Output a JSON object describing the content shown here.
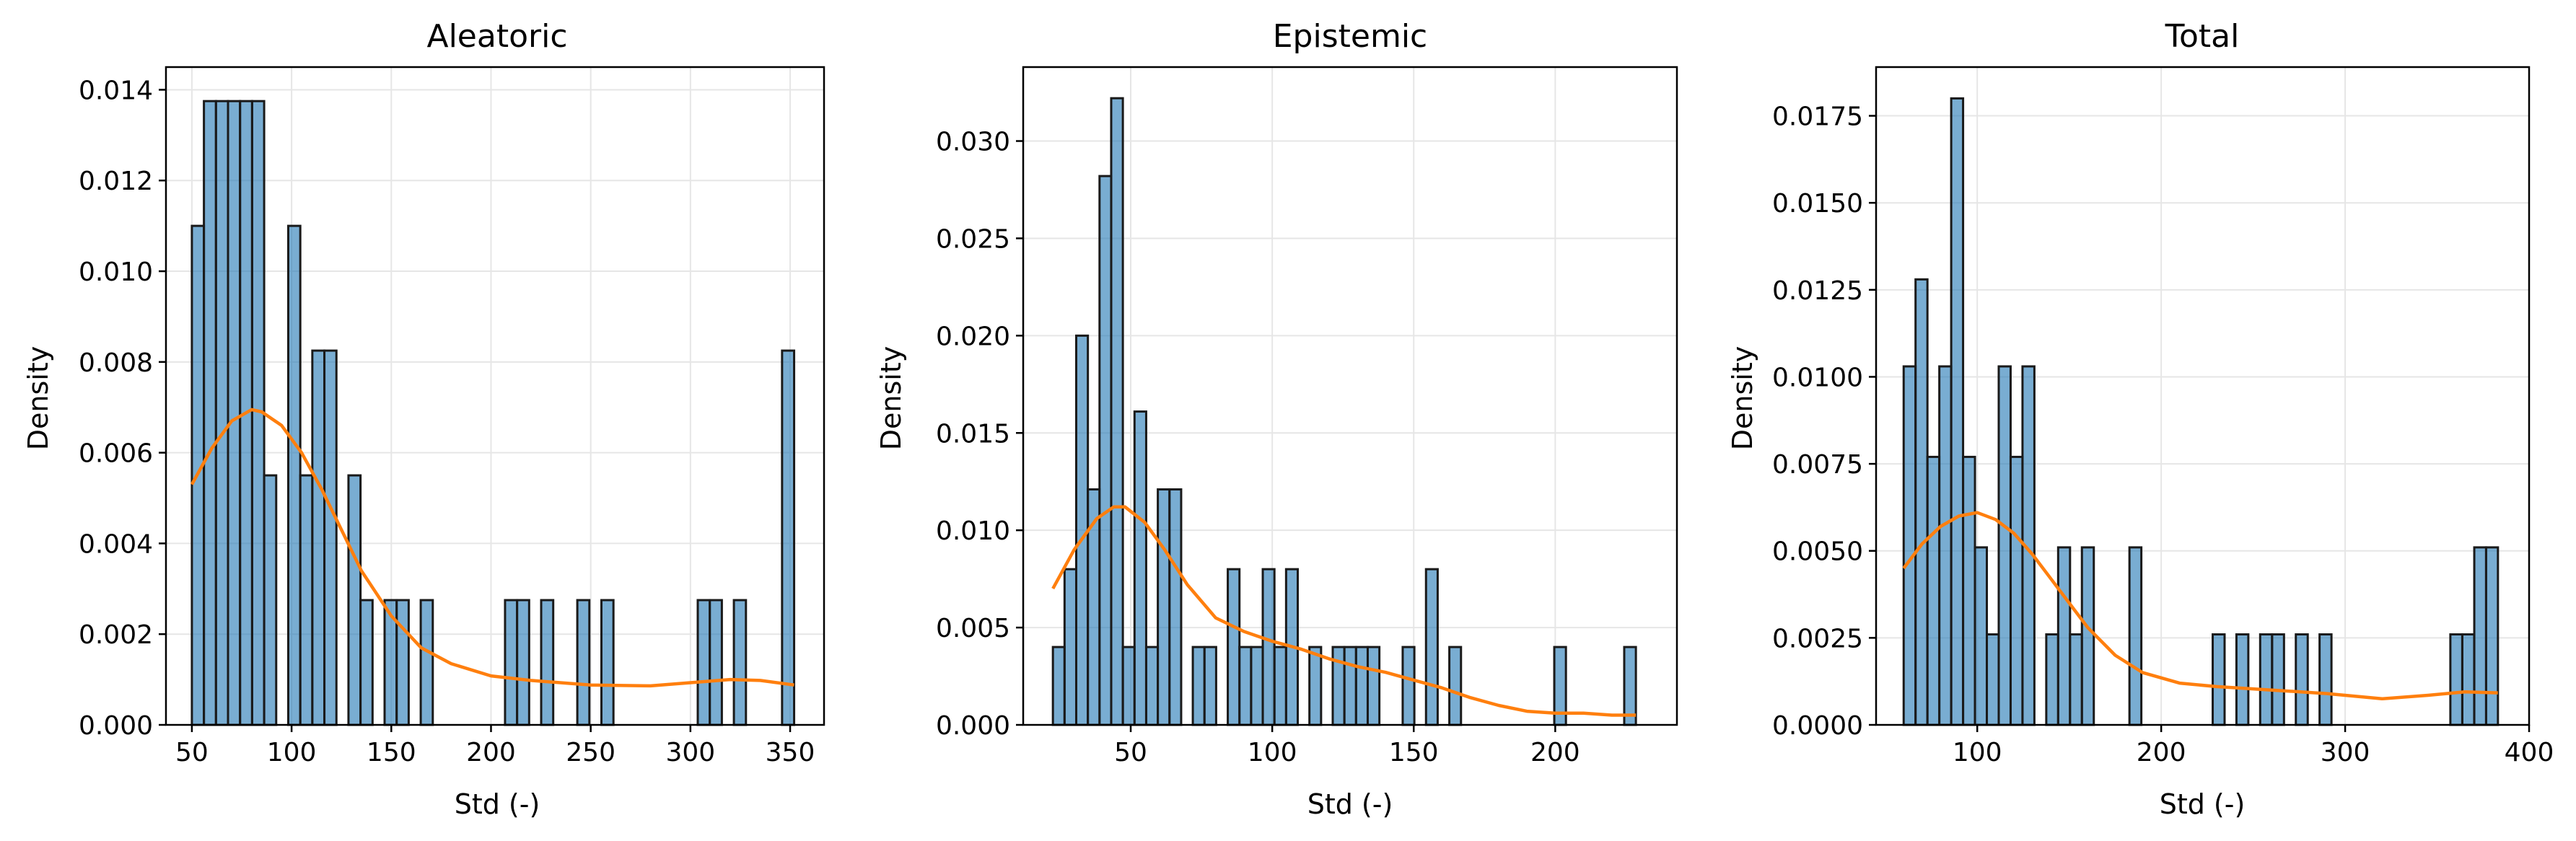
{
  "figure": {
    "bar_fill": "#1f77b4",
    "bar_edge": "#1a1a1a",
    "kde_color": "#ff7f0e",
    "grid": true
  },
  "chart_data": [
    {
      "type": "bar",
      "title": "Aleatoric",
      "xlabel": "Std (-)",
      "ylabel": "Density",
      "xlim": [
        37,
        367
      ],
      "ylim": [
        0,
        0.0145
      ],
      "xticks": [
        50,
        100,
        150,
        200,
        250,
        300,
        350
      ],
      "yticks": [
        0.0,
        0.002,
        0.004,
        0.006,
        0.008,
        0.01,
        0.012,
        0.014
      ],
      "ytick_labels": [
        "0.000",
        "0.002",
        "0.004",
        "0.006",
        "0.008",
        "0.010",
        "0.012",
        "0.014"
      ],
      "bin_width": 6.04,
      "bins": [
        {
          "x": 50,
          "y": 0.011
        },
        {
          "x": 56.04,
          "y": 0.01375
        },
        {
          "x": 62.08,
          "y": 0.01375
        },
        {
          "x": 68.12,
          "y": 0.01375
        },
        {
          "x": 74.16,
          "y": 0.01375
        },
        {
          "x": 80.2,
          "y": 0.01375
        },
        {
          "x": 86.24,
          "y": 0.0055
        },
        {
          "x": 98.32,
          "y": 0.011
        },
        {
          "x": 104.36,
          "y": 0.0055
        },
        {
          "x": 110.4,
          "y": 0.00825
        },
        {
          "x": 116.44,
          "y": 0.00825
        },
        {
          "x": 128.52,
          "y": 0.0055
        },
        {
          "x": 134.56,
          "y": 0.00275
        },
        {
          "x": 146.64,
          "y": 0.00275
        },
        {
          "x": 152.68,
          "y": 0.00275
        },
        {
          "x": 164.76,
          "y": 0.00275
        },
        {
          "x": 207.04,
          "y": 0.00275
        },
        {
          "x": 213.08,
          "y": 0.00275
        },
        {
          "x": 225.16,
          "y": 0.00275
        },
        {
          "x": 243.28,
          "y": 0.00275
        },
        {
          "x": 255.36,
          "y": 0.00275
        },
        {
          "x": 303.68,
          "y": 0.00275
        },
        {
          "x": 309.72,
          "y": 0.00275
        },
        {
          "x": 321.8,
          "y": 0.00275
        },
        {
          "x": 345.96,
          "y": 0.00825
        }
      ],
      "kde": {
        "x": [
          50,
          60,
          70,
          80,
          85,
          95,
          105,
          115,
          125,
          135,
          150,
          165,
          180,
          200,
          220,
          250,
          280,
          300,
          320,
          335,
          352
        ],
        "y": [
          0.0053,
          0.0061,
          0.0067,
          0.00695,
          0.0069,
          0.0066,
          0.006,
          0.0052,
          0.0043,
          0.0034,
          0.0024,
          0.0017,
          0.00135,
          0.00108,
          0.00098,
          0.00088,
          0.00086,
          0.00093,
          0.001,
          0.00098,
          0.00088
        ]
      }
    },
    {
      "type": "bar",
      "title": "Epistemic",
      "xlabel": "Std (-)",
      "ylabel": "Density",
      "xlim": [
        12,
        243
      ],
      "ylim": [
        0,
        0.0338
      ],
      "xticks": [
        50,
        100,
        150,
        200
      ],
      "yticks": [
        0.0,
        0.005,
        0.01,
        0.015,
        0.02,
        0.025,
        0.03
      ],
      "ytick_labels": [
        "0.000",
        "0.005",
        "0.010",
        "0.015",
        "0.020",
        "0.025",
        "0.030"
      ],
      "bin_width": 4.12,
      "bins": [
        {
          "x": 22.5,
          "y": 0.004
        },
        {
          "x": 26.62,
          "y": 0.008
        },
        {
          "x": 30.74,
          "y": 0.02
        },
        {
          "x": 34.86,
          "y": 0.0121
        },
        {
          "x": 38.98,
          "y": 0.0282
        },
        {
          "x": 43.1,
          "y": 0.0322
        },
        {
          "x": 47.22,
          "y": 0.004
        },
        {
          "x": 51.34,
          "y": 0.0161
        },
        {
          "x": 55.46,
          "y": 0.004
        },
        {
          "x": 59.58,
          "y": 0.0121
        },
        {
          "x": 63.7,
          "y": 0.0121
        },
        {
          "x": 71.94,
          "y": 0.004
        },
        {
          "x": 76.06,
          "y": 0.004
        },
        {
          "x": 84.3,
          "y": 0.008
        },
        {
          "x": 88.42,
          "y": 0.004
        },
        {
          "x": 92.54,
          "y": 0.004
        },
        {
          "x": 96.66,
          "y": 0.008
        },
        {
          "x": 100.78,
          "y": 0.004
        },
        {
          "x": 104.9,
          "y": 0.008
        },
        {
          "x": 113.14,
          "y": 0.004
        },
        {
          "x": 121.38,
          "y": 0.004
        },
        {
          "x": 125.5,
          "y": 0.004
        },
        {
          "x": 129.62,
          "y": 0.004
        },
        {
          "x": 133.74,
          "y": 0.004
        },
        {
          "x": 146.1,
          "y": 0.004
        },
        {
          "x": 154.34,
          "y": 0.008
        },
        {
          "x": 162.58,
          "y": 0.004
        },
        {
          "x": 199.66,
          "y": 0.004
        },
        {
          "x": 224.38,
          "y": 0.004
        }
      ],
      "kde": {
        "x": [
          22.5,
          30,
          38,
          44,
          48,
          55,
          62,
          70,
          80,
          90,
          100,
          110,
          120,
          130,
          140,
          150,
          160,
          170,
          180,
          190,
          200,
          210,
          220,
          228.5
        ],
        "y": [
          0.007,
          0.009,
          0.0106,
          0.0112,
          0.0112,
          0.0104,
          0.009,
          0.0072,
          0.0055,
          0.0048,
          0.0043,
          0.0039,
          0.0034,
          0.003,
          0.0027,
          0.0023,
          0.0019,
          0.0014,
          0.001,
          0.0007,
          0.0006,
          0.0006,
          0.0005,
          0.0005
        ]
      }
    },
    {
      "type": "bar",
      "title": "Total",
      "xlabel": "Std (-)",
      "ylabel": "Density",
      "xlim": [
        45,
        400
      ],
      "ylim": [
        0,
        0.0189
      ],
      "xticks": [
        100,
        200,
        300,
        400
      ],
      "yticks": [
        0.0,
        0.0025,
        0.005,
        0.0075,
        0.01,
        0.0125,
        0.015,
        0.0175
      ],
      "ytick_labels": [
        "0.0000",
        "0.0025",
        "0.0050",
        "0.0075",
        "0.0100",
        "0.0125",
        "0.0150",
        "0.0175"
      ],
      "bin_width": 6.46,
      "bins": [
        {
          "x": 60,
          "y": 0.0103
        },
        {
          "x": 66.46,
          "y": 0.0128
        },
        {
          "x": 72.92,
          "y": 0.0077
        },
        {
          "x": 79.38,
          "y": 0.0103
        },
        {
          "x": 85.84,
          "y": 0.018
        },
        {
          "x": 92.3,
          "y": 0.0077
        },
        {
          "x": 98.76,
          "y": 0.0051
        },
        {
          "x": 105.22,
          "y": 0.0026
        },
        {
          "x": 111.68,
          "y": 0.0103
        },
        {
          "x": 118.14,
          "y": 0.0077
        },
        {
          "x": 124.6,
          "y": 0.0103
        },
        {
          "x": 137.52,
          "y": 0.0026
        },
        {
          "x": 143.98,
          "y": 0.0051
        },
        {
          "x": 150.44,
          "y": 0.0026
        },
        {
          "x": 156.9,
          "y": 0.0051
        },
        {
          "x": 182.74,
          "y": 0.0051
        },
        {
          "x": 228.0,
          "y": 0.0026
        },
        {
          "x": 240.9,
          "y": 0.0026
        },
        {
          "x": 253.8,
          "y": 0.0026
        },
        {
          "x": 260.3,
          "y": 0.0026
        },
        {
          "x": 273.2,
          "y": 0.0026
        },
        {
          "x": 286.1,
          "y": 0.0026
        },
        {
          "x": 357.2,
          "y": 0.0026
        },
        {
          "x": 363.7,
          "y": 0.0026
        },
        {
          "x": 370.2,
          "y": 0.0051
        },
        {
          "x": 376.6,
          "y": 0.0051
        }
      ],
      "kde": {
        "x": [
          60,
          70,
          80,
          90,
          100,
          110,
          120,
          130,
          140,
          150,
          160,
          175,
          190,
          210,
          230,
          260,
          290,
          320,
          345,
          365,
          383
        ],
        "y": [
          0.0045,
          0.0052,
          0.0057,
          0.006,
          0.0061,
          0.0059,
          0.0055,
          0.0049,
          0.0042,
          0.0035,
          0.0028,
          0.002,
          0.0015,
          0.0012,
          0.0011,
          0.001,
          0.0009,
          0.00075,
          0.00085,
          0.00095,
          0.00092
        ]
      }
    }
  ]
}
